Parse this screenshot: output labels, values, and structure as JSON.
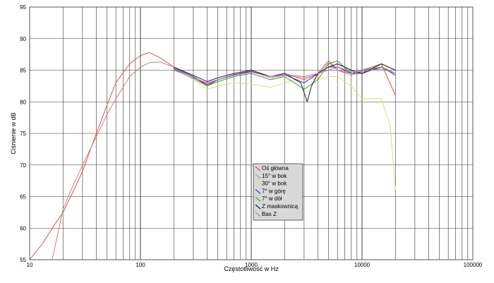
{
  "chart_data": {
    "type": "line",
    "title": "",
    "xlabel": "Częstotliwość w Hz",
    "ylabel": "Ciśnienie w dB",
    "xscale": "log",
    "xlim": [
      10,
      100000
    ],
    "ylim": [
      55,
      95
    ],
    "xticks": [
      10,
      100,
      1000,
      10000,
      100000
    ],
    "xtick_labels": [
      "10",
      "100",
      "1000",
      "10000",
      "100000"
    ],
    "yticks": [
      55,
      60,
      65,
      70,
      75,
      80,
      85,
      90,
      95
    ],
    "ytick_labels": [
      "55",
      "60",
      "65",
      "70",
      "75",
      "80",
      "85",
      "90",
      "95"
    ],
    "grid": true,
    "legend_position": "center",
    "series": [
      {
        "name": "Oś główna",
        "color": "#e05050",
        "x": [
          10,
          13,
          16,
          20,
          25,
          30,
          40,
          50,
          60,
          80,
          100,
          120,
          150,
          200,
          300,
          400,
          500,
          700,
          1000,
          1500,
          2000,
          3000,
          4000,
          5000,
          6000,
          8000,
          10000,
          15000,
          20000
        ],
        "y": [
          55,
          57.5,
          60,
          62.5,
          66,
          69,
          75,
          79.5,
          83,
          86,
          87.3,
          87.8,
          87,
          85.5,
          84,
          82.5,
          83.5,
          84.2,
          85,
          84,
          84.5,
          83.5,
          84.5,
          86.5,
          85,
          84.5,
          85,
          86,
          81
        ]
      },
      {
        "name": "15° w bok",
        "color": "#d08080",
        "x": [
          16,
          20,
          25,
          30,
          40,
          50,
          60,
          80,
          100,
          120,
          150,
          200,
          300,
          400,
          500,
          700,
          1000,
          1500,
          2000,
          3000,
          4000,
          5000,
          6000,
          8000,
          10000,
          15000,
          20000
        ],
        "y": [
          55,
          63,
          67,
          70,
          74.5,
          78,
          80.5,
          84,
          85.5,
          86.2,
          86.3,
          85.5,
          84,
          82.8,
          83.5,
          84.2,
          84.8,
          83.8,
          84.2,
          83.8,
          84.2,
          86.2,
          85,
          84.2,
          84.8,
          85.5,
          84.5
        ]
      },
      {
        "name": "30° w bok",
        "color": "#d8e080",
        "x": [
          200,
          300,
          400,
          500,
          700,
          1000,
          1500,
          2000,
          3000,
          4000,
          5000,
          6000,
          8000,
          10000,
          12000,
          15000,
          18000,
          20000
        ],
        "y": [
          85.2,
          83.5,
          82,
          82.5,
          83,
          82.8,
          82.3,
          83,
          84,
          83.5,
          84,
          84,
          82.5,
          80.5,
          80.5,
          80.5,
          76,
          66
        ]
      },
      {
        "name": "7° w górę",
        "color": "#3838b8",
        "x": [
          200,
          300,
          400,
          500,
          700,
          1000,
          1500,
          2000,
          3000,
          4000,
          5000,
          6000,
          8000,
          10000,
          15000,
          20000
        ],
        "y": [
          85.3,
          84,
          82.7,
          83.5,
          84.3,
          84.8,
          84,
          84.3,
          83,
          84.5,
          85.5,
          85.5,
          84.5,
          84.5,
          85.5,
          84.2
        ]
      },
      {
        "name": "7° w dół",
        "color": "#38a038",
        "x": [
          200,
          300,
          400,
          500,
          700,
          1000,
          1500,
          2000,
          3000,
          4000,
          5000,
          6000,
          8000,
          10000,
          15000,
          20000
        ],
        "y": [
          85.2,
          83.7,
          82.5,
          83.2,
          84,
          84.5,
          83.5,
          84,
          82,
          83.5,
          86,
          86.5,
          84.5,
          85,
          85.5,
          84.5
        ]
      },
      {
        "name": "Z maskownicą",
        "color": "#202020",
        "x": [
          200,
          300,
          400,
          500,
          700,
          1000,
          1500,
          2000,
          2800,
          3200,
          3500,
          4000,
          5000,
          6000,
          8000,
          10000,
          15000,
          20000
        ],
        "y": [
          85.5,
          84.2,
          83.2,
          83.8,
          84.5,
          85,
          84,
          84.5,
          83,
          80,
          82.5,
          84.5,
          85.5,
          86,
          85,
          84.5,
          86,
          85
        ]
      },
      {
        "name": "Bas Z",
        "color": "#c870c8",
        "x": [
          200,
          300,
          400,
          500,
          700,
          1000,
          1500,
          2000,
          3000,
          4000,
          5000,
          6000,
          8000,
          10000,
          15000,
          20000
        ],
        "y": [
          85,
          83.8,
          83,
          83.5,
          84.2,
          84.7,
          84,
          84.3,
          84,
          84.5,
          85,
          85.5,
          84.8,
          84.8,
          85.2,
          84.5
        ]
      }
    ]
  }
}
